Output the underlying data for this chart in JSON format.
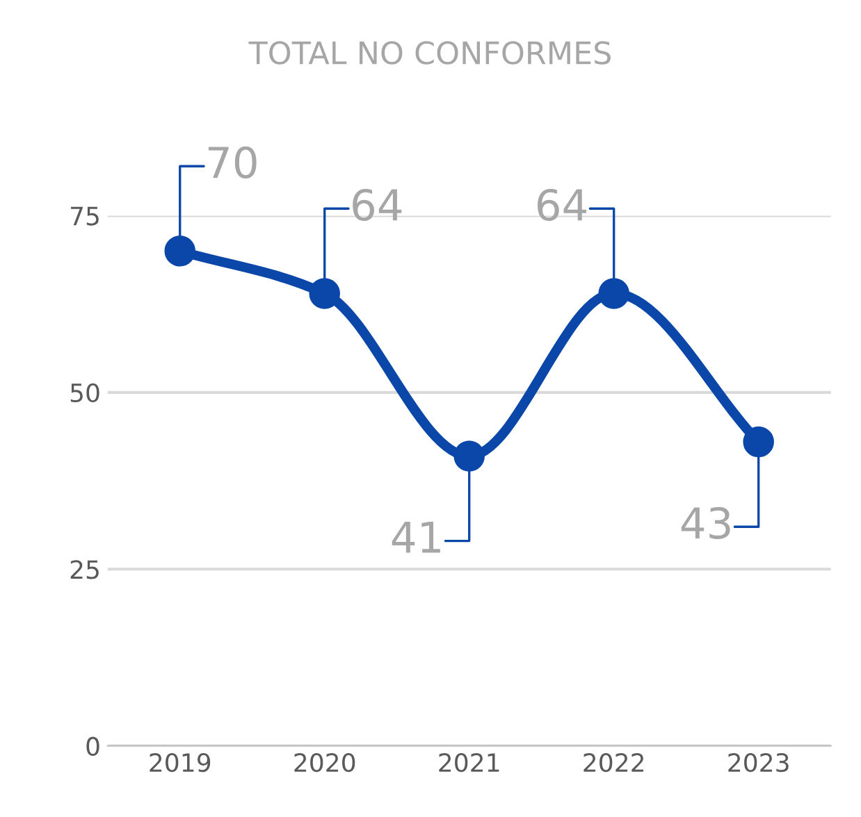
{
  "chart_data": {
    "type": "line",
    "title": "TOTAL NO CONFORMES",
    "categories": [
      "2019",
      "2020",
      "2021",
      "2022",
      "2023"
    ],
    "series": [
      {
        "color": "#0a47a9",
        "values": [
          70,
          64,
          41,
          64,
          43
        ]
      }
    ],
    "ylim": [
      0,
      75
    ],
    "yticks": [
      0,
      25,
      50,
      75
    ],
    "grid": "y",
    "marker": "circle",
    "line_style": "solid",
    "data_labels": true
  }
}
